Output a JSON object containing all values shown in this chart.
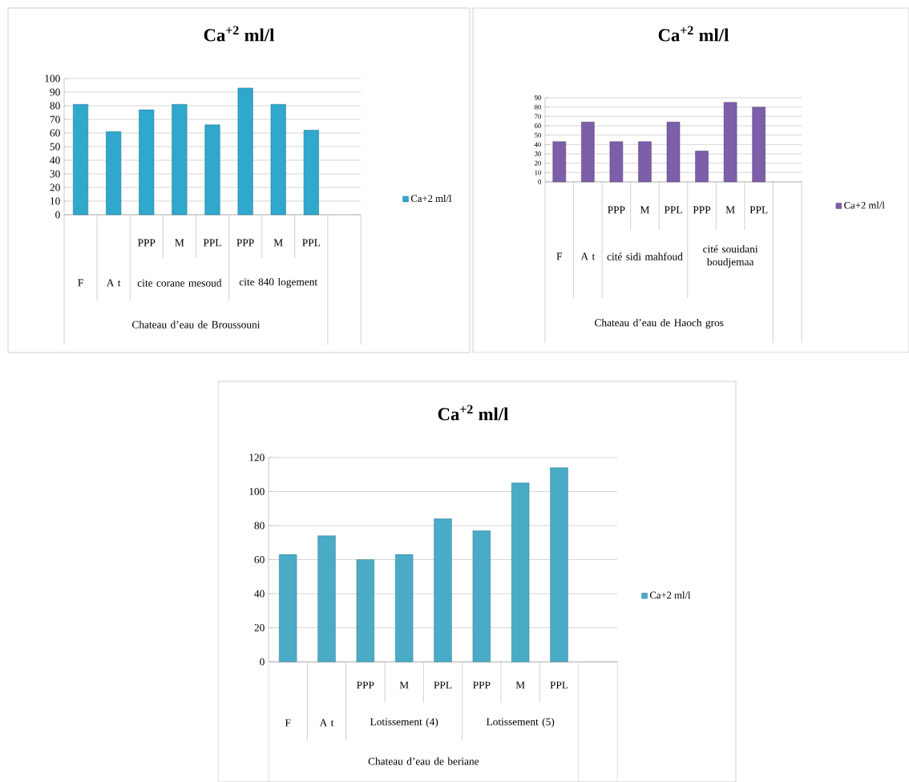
{
  "chart_data": [
    {
      "type": "bar",
      "title": "Ca$^{+2}$ ml/l",
      "categories": [
        null,
        null,
        "PPP",
        "M",
        "PPL",
        "PPP",
        "M",
        "PPL",
        null
      ],
      "annotations": [
        "F",
        "A  t",
        "cite corane mesoud",
        "cite 840 logement",
        "Chateau d’eau de Broussouni"
      ],
      "series": [
        {
          "name": "Ca+2 ml/l",
          "color": "#2fa8cc",
          "values": [
            81,
            61,
            77,
            81,
            66,
            93,
            81,
            62,
            null
          ]
        }
      ],
      "ylim": [
        0,
        100
      ],
      "yticks": [
        0,
        10,
        20,
        30,
        40,
        50,
        60,
        70,
        80,
        90,
        100
      ],
      "grid": "y",
      "legend": "right"
    },
    {
      "type": "bar",
      "title": "Ca$^{+2}$ ml/l",
      "categories": [
        null,
        null,
        "PPP",
        "M",
        "PPL",
        "PPP",
        "M",
        "PPL",
        null
      ],
      "annotations": [
        "F",
        "A  t",
        "cité sidi mahfoud",
        "cité souidani boudjemaa",
        "Chateau d’eau de Haoch gros"
      ],
      "series": [
        {
          "name": "Ca+2 ml/l",
          "color": "#7d5ea8",
          "values": [
            43,
            64,
            43,
            43,
            64,
            33,
            85,
            80,
            null
          ]
        }
      ],
      "ylim": [
        0,
        90
      ],
      "yticks": [
        0,
        10,
        20,
        30,
        40,
        50,
        60,
        70,
        80,
        90
      ],
      "grid": "y",
      "legend": "right"
    },
    {
      "type": "bar",
      "title": "Ca$^{+2}$ ml/l",
      "categories": [
        null,
        null,
        "PPP",
        "M",
        "PPL",
        "PPP",
        "M",
        "PPL",
        null
      ],
      "annotations": [
        "F",
        "A  t",
        "Lotissement (4)",
        "Lotissement (5)",
        "Chateau d’eau de beriane"
      ],
      "series": [
        {
          "name": "Ca+2 ml/l",
          "color": "#4aabc7",
          "values": [
            63,
            74,
            60,
            63,
            84,
            77,
            105,
            114,
            null
          ]
        }
      ],
      "ylim": [
        0,
        120
      ],
      "yticks": [
        0,
        20,
        40,
        60,
        80,
        100,
        120
      ],
      "grid": "y",
      "legend": "right"
    }
  ]
}
